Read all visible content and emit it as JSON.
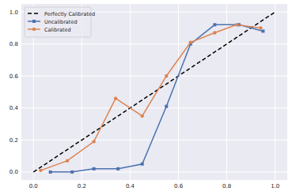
{
  "chart_data": {
    "type": "line",
    "series": [
      {
        "name": "Perfectly Calibrated",
        "color": "#000000",
        "line_style": "dashed",
        "marker": "none",
        "x": [
          0,
          1
        ],
        "values": [
          0,
          1
        ]
      },
      {
        "name": "Uncalibrated",
        "color": "#4c72b0",
        "line_style": "solid",
        "marker": "square",
        "x": [
          0.07,
          0.16,
          0.25,
          0.35,
          0.45,
          0.55,
          0.65,
          0.75,
          0.85,
          0.95
        ],
        "values": [
          0.0,
          0.0,
          0.02,
          0.02,
          0.05,
          0.41,
          0.8,
          0.92,
          0.92,
          0.88
        ]
      },
      {
        "name": "Calibrated",
        "color": "#dd8452",
        "line_style": "solid",
        "marker": "circle",
        "x": [
          0.03,
          0.14,
          0.25,
          0.34,
          0.45,
          0.55,
          0.65,
          0.75,
          0.84,
          0.94
        ],
        "values": [
          0.01,
          0.07,
          0.19,
          0.46,
          0.35,
          0.6,
          0.81,
          0.87,
          0.92,
          0.9
        ]
      }
    ],
    "xlim": [
      -0.05,
      1.05
    ],
    "ylim": [
      -0.05,
      1.05
    ],
    "xticks": [
      {
        "value": 0,
        "label": "0.0"
      },
      0.2,
      0.4,
      0.6,
      0.8,
      {
        "value": 1,
        "label": "1.0"
      }
    ],
    "yticks": [
      {
        "value": 0,
        "label": "0.0"
      },
      0.2,
      0.4,
      0.6,
      0.8,
      {
        "value": 1,
        "label": "1.0"
      }
    ],
    "grid": true,
    "legend": "upper left"
  }
}
